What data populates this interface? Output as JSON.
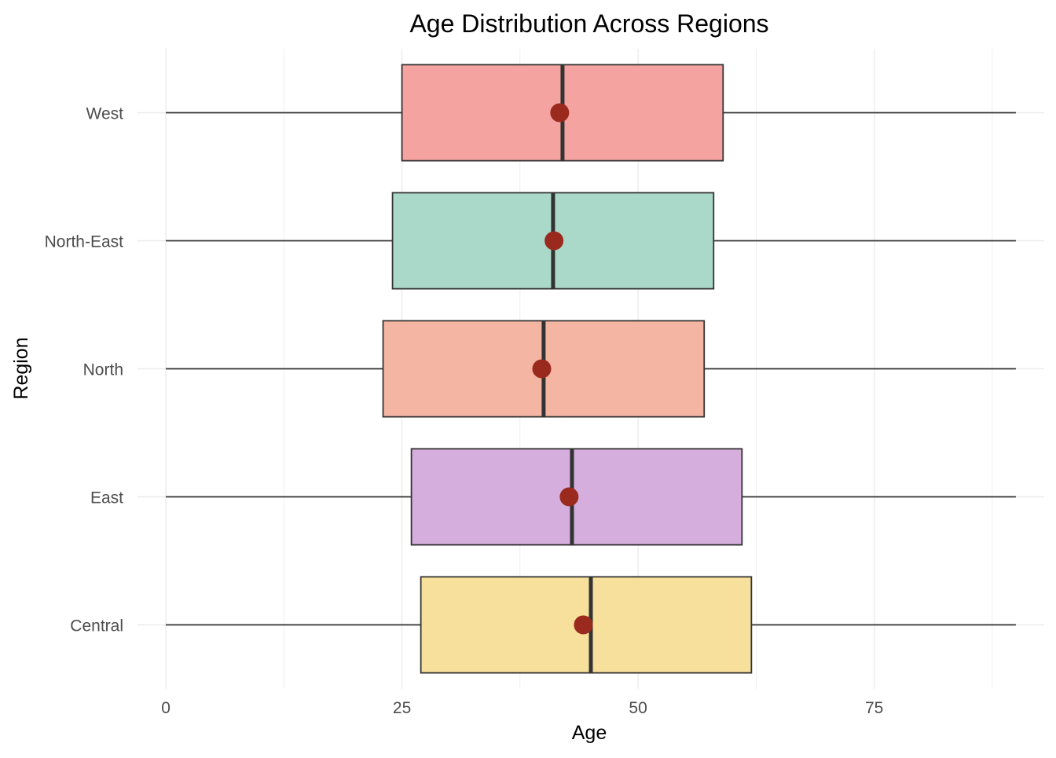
{
  "chart_data": {
    "type": "boxplot",
    "title": "Age Distribution Across Regions",
    "xlabel": "Age",
    "ylabel": "Region",
    "orientation": "horizontal",
    "xlim": [
      -3,
      93
    ],
    "x_ticks": [
      0,
      25,
      50,
      75
    ],
    "x_tick_labels": [
      "0",
      "25",
      "50",
      "75"
    ],
    "grid": true,
    "legend": "none",
    "categories": [
      "Central",
      "East",
      "North",
      "North-East",
      "West"
    ],
    "boxes": [
      {
        "category": "Central",
        "min": 0,
        "q1": 27,
        "median": 45,
        "q3": 62,
        "max": 90,
        "mean": 44.2,
        "color": "#F7E09B"
      },
      {
        "category": "East",
        "min": 0,
        "q1": 26,
        "median": 43,
        "q3": 61,
        "max": 90,
        "mean": 42.7,
        "color": "#D5AEDD"
      },
      {
        "category": "North",
        "min": 0,
        "q1": 23,
        "median": 40,
        "q3": 57,
        "max": 90,
        "mean": 39.8,
        "color": "#F5B5A3"
      },
      {
        "category": "North-East",
        "min": 0,
        "q1": 24,
        "median": 41,
        "q3": 58,
        "max": 90,
        "mean": 41.1,
        "color": "#AAD8C9"
      },
      {
        "category": "West",
        "min": 0,
        "q1": 25,
        "median": 42,
        "q3": 59,
        "max": 90,
        "mean": 41.7,
        "color": "#F5A3A0"
      }
    ],
    "mean_marker_color": "#9B2A1E",
    "box_outline_color": "#333333"
  }
}
